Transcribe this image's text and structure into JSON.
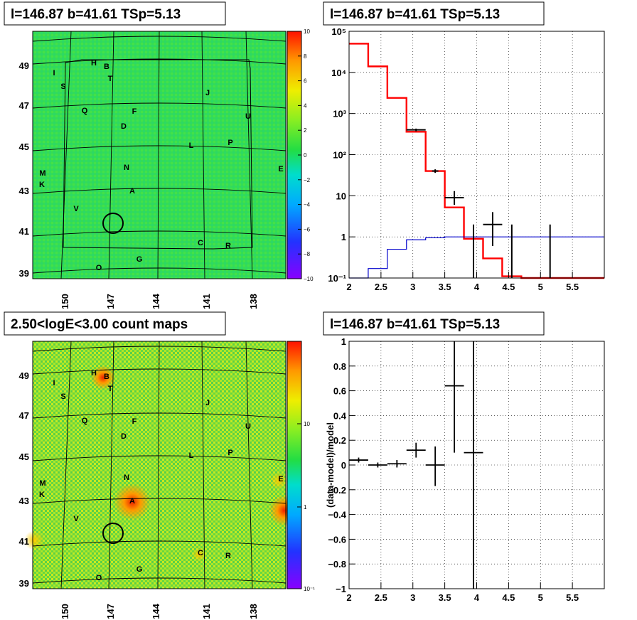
{
  "panels": {
    "map_top": {
      "title": "l=146.87 b=41.61 TSp=5.13"
    },
    "spectrum": {
      "title": "l=146.87 b=41.61 TSp=5.13"
    },
    "map_bottom": {
      "title": "2.50<logE<3.00 count maps"
    },
    "residual": {
      "title": "l=146.87 b=41.61 TSp=5.13"
    }
  },
  "maps": {
    "x_ticks": [
      "150",
      "147",
      "144",
      "141",
      "138"
    ],
    "y_ticks": [
      "49",
      "47",
      "45",
      "43",
      "41",
      "39"
    ],
    "sources": [
      "H",
      "B",
      "I",
      "T",
      "S",
      "J",
      "Q",
      "F",
      "U",
      "D",
      "L",
      "P",
      "E",
      "M",
      "N",
      "K",
      "A",
      "V",
      "C",
      "R",
      "G",
      "O"
    ],
    "top_colorbar_ticks": [
      "10",
      "8",
      "6",
      "4",
      "2",
      "0",
      "−2",
      "−4",
      "−6",
      "−8",
      "−10"
    ],
    "bottom_colorbar_ticks": [
      "10",
      "1",
      "10⁻¹"
    ]
  },
  "chart_data": [
    {
      "type": "line",
      "log_y": true,
      "xlim": [
        2,
        6
      ],
      "ylim": [
        0.1,
        100000
      ],
      "x_ticks": [
        "2",
        "2.5",
        "3",
        "3.5",
        "4",
        "4.5",
        "5",
        "5.5"
      ],
      "y_ticks": [
        "10⁻¹",
        "1",
        "10",
        "10²",
        "10³",
        "10⁴",
        "10⁵"
      ],
      "bin_edges": [
        2.0,
        2.3,
        2.6,
        2.9,
        3.2,
        3.5,
        3.8,
        4.1,
        4.4,
        4.7,
        5.0,
        5.3,
        5.6,
        5.9,
        6.0
      ],
      "series": [
        {
          "color": "#ff0000",
          "style": "step",
          "values": [
            50000,
            14000,
            2400,
            360,
            40,
            5.2,
            0.9,
            0.3,
            0.11,
            0.1,
            0.1,
            0.1,
            0.1,
            0.1
          ]
        },
        {
          "color": "#0000cc",
          "style": "step",
          "values": [
            0.1,
            0.17,
            0.5,
            0.85,
            0.95,
            1.0,
            1.0,
            1.0,
            1.0,
            1.0,
            1.0,
            1.0,
            1.0,
            1.0
          ]
        },
        {
          "color": "#000000",
          "style": "errorbar",
          "points": [
            {
              "x": 3.05,
              "y": 400,
              "xerr": 0.15,
              "ylo": 370,
              "yhi": 430
            },
            {
              "x": 3.35,
              "y": 40,
              "xerr": 0.05,
              "ylo": 36,
              "yhi": 44
            },
            {
              "x": 3.65,
              "y": 9,
              "xerr": 0.15,
              "ylo": 6,
              "yhi": 13
            },
            {
              "x": 3.95,
              "y": 1,
              "xerr": 0.0,
              "ylo": 0.1,
              "yhi": 2
            },
            {
              "x": 4.25,
              "y": 2,
              "xerr": 0.15,
              "ylo": 0.6,
              "yhi": 4
            },
            {
              "x": 4.55,
              "y": 1,
              "xerr": 0.0,
              "ylo": 0.1,
              "yhi": 2
            },
            {
              "x": 5.15,
              "y": 1,
              "xerr": 0.0,
              "ylo": 0.1,
              "yhi": 2
            }
          ]
        }
      ]
    },
    {
      "type": "scatter",
      "ylabel": "(data-model)/model",
      "xlim": [
        2,
        6
      ],
      "ylim": [
        -1,
        1
      ],
      "x_ticks": [
        "2",
        "2.5",
        "3",
        "3.5",
        "4",
        "4.5",
        "5",
        "5.5"
      ],
      "y_ticks": [
        "−1",
        "−0.8",
        "−0.6",
        "−0.4",
        "−0.2",
        "0",
        "0.2",
        "0.4",
        "0.6",
        "0.8",
        "1"
      ],
      "points": [
        {
          "x": 2.15,
          "y": 0.04,
          "xerr": 0.15,
          "ylo": 0.02,
          "yhi": 0.06
        },
        {
          "x": 2.45,
          "y": 0.0,
          "xerr": 0.15,
          "ylo": -0.02,
          "yhi": 0.02
        },
        {
          "x": 2.75,
          "y": 0.01,
          "xerr": 0.15,
          "ylo": -0.02,
          "yhi": 0.04
        },
        {
          "x": 3.05,
          "y": 0.12,
          "xerr": 0.15,
          "ylo": 0.06,
          "yhi": 0.18
        },
        {
          "x": 3.35,
          "y": 0.0,
          "xerr": 0.15,
          "ylo": -0.17,
          "yhi": 0.15
        },
        {
          "x": 3.65,
          "y": 0.64,
          "xerr": 0.15,
          "ylo": 0.1,
          "yhi": 1.0
        },
        {
          "x": 3.95,
          "y": 0.1,
          "xerr": 0.15,
          "ylo": -1.0,
          "yhi": 1.0
        }
      ]
    }
  ]
}
